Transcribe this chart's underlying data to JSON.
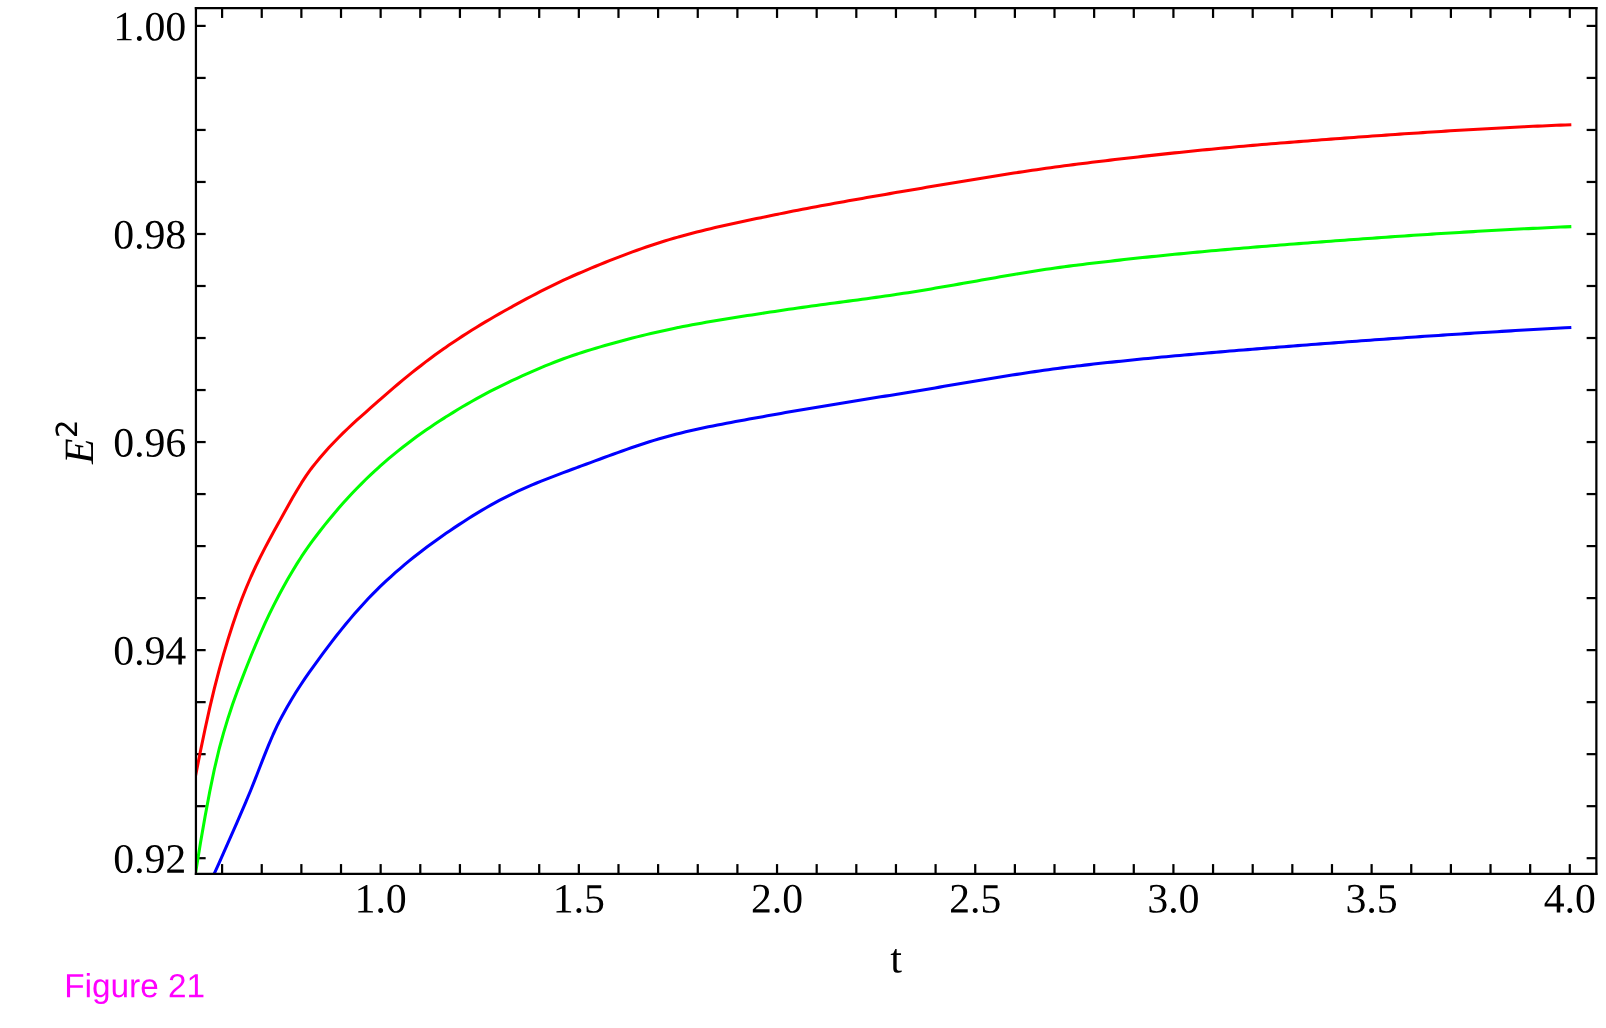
{
  "chart_data": {
    "type": "line",
    "xlabel": "t",
    "ylabel": "E$^{2}$",
    "annotations": [
      "Figure 21"
    ],
    "xlim": [
      0.534,
      4.067
    ],
    "ylim": [
      0.9185,
      1.0017
    ],
    "xticks": [
      {
        "value": 0.6,
        "label": null
      },
      {
        "value": 0.7,
        "label": null
      },
      {
        "value": 0.8,
        "label": null
      },
      {
        "value": 0.9,
        "label": null
      },
      {
        "value": 1.0,
        "label": "1.0"
      },
      {
        "value": 1.1,
        "label": null
      },
      {
        "value": 1.2,
        "label": null
      },
      {
        "value": 1.3,
        "label": null
      },
      {
        "value": 1.4,
        "label": null
      },
      1.5,
      {
        "value": 1.6,
        "label": null
      },
      {
        "value": 1.7,
        "label": null
      },
      {
        "value": 1.8,
        "label": null
      },
      {
        "value": 1.9,
        "label": null
      },
      {
        "value": 2.0,
        "label": "2.0"
      },
      {
        "value": 2.1,
        "label": null
      },
      {
        "value": 2.2,
        "label": null
      },
      {
        "value": 2.3,
        "label": null
      },
      {
        "value": 2.4,
        "label": null
      },
      2.5,
      {
        "value": 2.6,
        "label": null
      },
      {
        "value": 2.7,
        "label": null
      },
      {
        "value": 2.8,
        "label": null
      },
      {
        "value": 2.9,
        "label": null
      },
      {
        "value": 3.0,
        "label": "3.0"
      },
      {
        "value": 3.1,
        "label": null
      },
      {
        "value": 3.2,
        "label": null
      },
      {
        "value": 3.3,
        "label": null
      },
      {
        "value": 3.4,
        "label": null
      },
      3.5,
      {
        "value": 3.6,
        "label": null
      },
      {
        "value": 3.7,
        "label": null
      },
      {
        "value": 3.8,
        "label": null
      },
      {
        "value": 3.9,
        "label": null
      },
      {
        "value": 4.0,
        "label": "4.0"
      }
    ],
    "yticks": [
      0.92,
      {
        "value": 0.925,
        "label": null
      },
      {
        "value": 0.93,
        "label": null
      },
      {
        "value": 0.935,
        "label": null
      },
      0.94,
      {
        "value": 0.945,
        "label": null
      },
      {
        "value": 0.95,
        "label": null
      },
      {
        "value": 0.955,
        "label": null
      },
      0.96,
      {
        "value": 0.965,
        "label": null
      },
      {
        "value": 0.97,
        "label": null
      },
      {
        "value": 0.975,
        "label": null
      },
      0.98,
      {
        "value": 0.985,
        "label": null
      },
      {
        "value": 0.99,
        "label": null
      },
      {
        "value": 0.995,
        "label": null
      },
      {
        "value": 1.0,
        "label": "1.00"
      }
    ],
    "grid": false,
    "legend": false,
    "marker": "none",
    "line_style": "solid",
    "series": [
      {
        "color": "#ff0000",
        "x": [
          0.534,
          0.594,
          0.661,
          0.745,
          0.828,
          0.996,
          1.164,
          1.331,
          1.499,
          1.75,
          2.002,
          2.303,
          2.755,
          3.258,
          4.0
        ],
        "values": [
          0.9281,
          0.9383,
          0.946,
          0.9524,
          0.9576,
          0.964,
          0.9691,
          0.973,
          0.9762,
          0.9797,
          0.9819,
          0.984,
          0.9867,
          0.9887,
          0.9905
        ]
      },
      {
        "color": "#00ff00",
        "x": [
          0.534,
          0.594,
          0.661,
          0.745,
          0.828,
          0.996,
          1.164,
          1.331,
          1.499,
          1.75,
          2.002,
          2.303,
          2.755,
          3.258,
          4.0
        ],
        "values": [
          0.9188,
          0.9307,
          0.9383,
          0.9454,
          0.9505,
          0.9576,
          0.9624,
          0.9659,
          0.9685,
          0.971,
          0.9726,
          0.9742,
          0.977,
          0.9789,
          0.9807
        ]
      },
      {
        "color": "#0000ff",
        "x": [
          0.58,
          0.661,
          0.745,
          0.828,
          0.996,
          1.164,
          1.331,
          1.499,
          1.75,
          2.002,
          2.303,
          2.755,
          3.258,
          4.0
        ],
        "values": [
          0.9185,
          0.9255,
          0.9332,
          0.9383,
          0.946,
          0.9512,
          0.955,
          0.9576,
          0.9608,
          0.9627,
          0.9646,
          0.9673,
          0.9691,
          0.971
        ]
      }
    ]
  }
}
